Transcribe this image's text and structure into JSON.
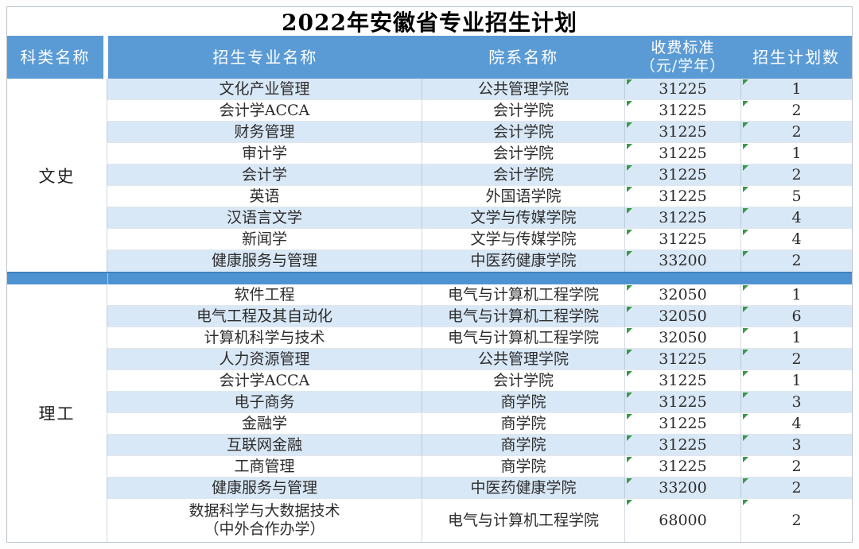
{
  "title": "2022年安徽省专业招生计划",
  "colors": {
    "header_bg": "#5b9bd5",
    "separator_bg": "#4e93d1",
    "row_alt_bg": "#d9e8f6",
    "indicator_green": "#3a9948"
  },
  "table": {
    "headers": {
      "category": "科类名称",
      "major": "招生专业名称",
      "college": "院系名称",
      "fee_line1": "收费标准",
      "fee_line2": "（元/学年）",
      "plan": "招生计划数"
    },
    "sections": [
      {
        "category": "文史",
        "first_row_shade": "alt",
        "rows": [
          {
            "major": "文化产业管理",
            "college": "公共管理学院",
            "fee": "31225",
            "plan": "1"
          },
          {
            "major": "会计学ACCA",
            "college": "会计学院",
            "fee": "31225",
            "plan": "2"
          },
          {
            "major": "财务管理",
            "college": "会计学院",
            "fee": "31225",
            "plan": "2"
          },
          {
            "major": "审计学",
            "college": "会计学院",
            "fee": "31225",
            "plan": "1"
          },
          {
            "major": "会计学",
            "college": "会计学院",
            "fee": "31225",
            "plan": "2"
          },
          {
            "major": "英语",
            "college": "外国语学院",
            "fee": "31225",
            "plan": "5"
          },
          {
            "major": "汉语言文学",
            "college": "文学与传媒学院",
            "fee": "31225",
            "plan": "4"
          },
          {
            "major": "新闻学",
            "college": "文学与传媒学院",
            "fee": "31225",
            "plan": "4"
          },
          {
            "major": "健康服务与管理",
            "college": "中医药健康学院",
            "fee": "33200",
            "plan": "2"
          }
        ]
      },
      {
        "category": "理工",
        "first_row_shade": "plain",
        "rows": [
          {
            "major": "软件工程",
            "college": "电气与计算机工程学院",
            "fee": "32050",
            "plan": "1"
          },
          {
            "major": "电气工程及其自动化",
            "college": "电气与计算机工程学院",
            "fee": "32050",
            "plan": "6"
          },
          {
            "major": "计算机科学与技术",
            "college": "电气与计算机工程学院",
            "fee": "32050",
            "plan": "1"
          },
          {
            "major": "人力资源管理",
            "college": "公共管理学院",
            "fee": "31225",
            "plan": "2"
          },
          {
            "major": "会计学ACCA",
            "college": "会计学院",
            "fee": "31225",
            "plan": "1"
          },
          {
            "major": "电子商务",
            "college": "商学院",
            "fee": "31225",
            "plan": "3"
          },
          {
            "major": "金融学",
            "college": "商学院",
            "fee": "31225",
            "plan": "4"
          },
          {
            "major": "互联网金融",
            "college": "商学院",
            "fee": "31225",
            "plan": "3"
          },
          {
            "major": "工商管理",
            "college": "商学院",
            "fee": "31225",
            "plan": "2"
          },
          {
            "major": "健康服务与管理",
            "college": "中医药健康学院",
            "fee": "33200",
            "plan": "2"
          },
          {
            "major": "数据科学与大数据技术\n（中外合作办学）",
            "college": "电气与计算机工程学院",
            "fee": "68000",
            "plan": "2",
            "tall": true
          }
        ]
      }
    ]
  }
}
